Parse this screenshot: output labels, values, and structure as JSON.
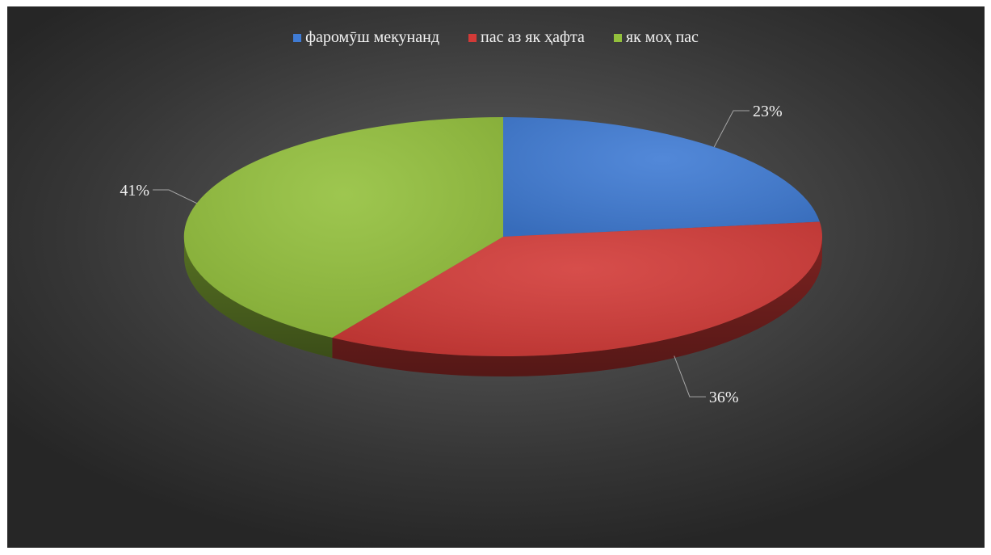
{
  "chart_data": {
    "type": "pie",
    "series": [
      {
        "name": "фаромӯш мекунанд",
        "value": 23,
        "label": "23%",
        "color": "#3f7bd4"
      },
      {
        "name": "пас аз як ҳафта",
        "value": 36,
        "label": "36%",
        "color": "#d23a37"
      },
      {
        "name": "як моҳ пас",
        "value": 41,
        "label": "41%",
        "color": "#93c03c"
      }
    ],
    "legend_position": "top",
    "style": "3d"
  }
}
